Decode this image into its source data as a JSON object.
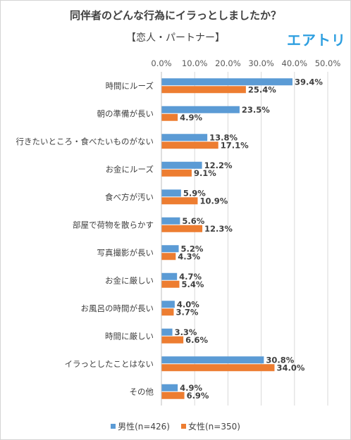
{
  "chart_data": {
    "type": "bar",
    "orientation": "horizontal",
    "title": "同伴者のどんな行為にイラっとしましたか？",
    "subtitle": "【恋人・パートナー】",
    "brand": "エアトリ",
    "xlim": [
      0,
      50
    ],
    "ticks": [
      "0.0%",
      "10.0%",
      "20.0%",
      "30.0%",
      "40.0%",
      "50.0%"
    ],
    "tick_values": [
      0,
      10,
      20,
      30,
      40,
      50
    ],
    "grid": true,
    "legend_position": "bottom",
    "categories": [
      "時間にルーズ",
      "朝の準備が長い",
      "行きたいところ・食べたいものがない",
      "お金にルーズ",
      "食べ方が汚い",
      "部屋で荷物を散らかす",
      "写真撮影が長い",
      "お金に厳しい",
      "お風呂の時間が長い",
      "時間に厳しい",
      "イラっとしたことはない",
      "その他"
    ],
    "series": [
      {
        "name": "男性(n=426)",
        "color": "#5b9bd5",
        "values": [
          39.4,
          23.5,
          13.8,
          12.2,
          5.9,
          5.6,
          5.2,
          4.7,
          4.0,
          3.3,
          30.8,
          4.9
        ],
        "labels": [
          "39.4%",
          "23.5%",
          "13.8%",
          "12.2%",
          "5.9%",
          "5.6%",
          "5.2%",
          "4.7%",
          "4.0%",
          "3.3%",
          "30.8%",
          "4.9%"
        ]
      },
      {
        "name": "女性(n=350)",
        "color": "#ed7d31",
        "values": [
          25.4,
          4.9,
          17.1,
          9.1,
          10.9,
          12.3,
          4.3,
          5.4,
          3.7,
          6.6,
          34.0,
          6.9
        ],
        "labels": [
          "25.4%",
          "4.9%",
          "17.1%",
          "9.1%",
          "10.9%",
          "12.3%",
          "4.3%",
          "5.4%",
          "3.7%",
          "6.6%",
          "34.0%",
          "6.9%"
        ]
      }
    ]
  }
}
